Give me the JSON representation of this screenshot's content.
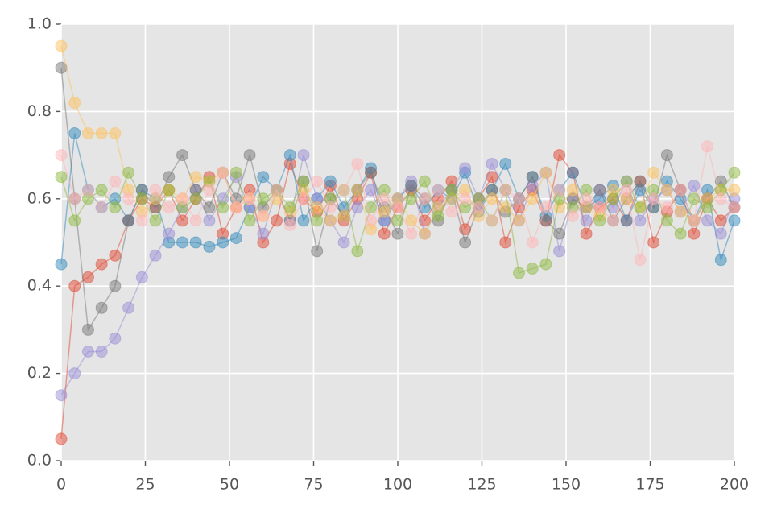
{
  "chart_data": {
    "type": "line",
    "x": [
      0,
      4,
      8,
      12,
      16,
      20,
      24,
      28,
      32,
      36,
      40,
      44,
      48,
      52,
      56,
      60,
      64,
      68,
      72,
      76,
      80,
      84,
      88,
      92,
      96,
      100,
      104,
      108,
      112,
      116,
      120,
      124,
      128,
      132,
      136,
      140,
      144,
      148,
      152,
      156,
      160,
      164,
      168,
      172,
      176,
      180,
      184,
      188,
      192,
      196,
      200
    ],
    "series": [
      {
        "color": "#E24A33",
        "values": [
          0.05,
          0.4,
          0.42,
          0.45,
          0.47,
          0.55,
          0.6,
          0.58,
          0.62,
          0.55,
          0.6,
          0.65,
          0.52,
          0.58,
          0.62,
          0.5,
          0.55,
          0.68,
          0.6,
          0.57,
          0.63,
          0.55,
          0.6,
          0.66,
          0.52,
          0.58,
          0.62,
          0.55,
          0.6,
          0.64,
          0.53,
          0.6,
          0.65,
          0.5,
          0.58,
          0.62,
          0.55,
          0.7,
          0.66,
          0.52,
          0.58,
          0.6,
          0.55,
          0.64,
          0.5,
          0.57,
          0.62,
          0.52,
          0.6,
          0.55,
          0.58
        ]
      },
      {
        "color": "#348ABD",
        "values": [
          0.45,
          0.75,
          0.62,
          0.58,
          0.6,
          0.55,
          0.62,
          0.6,
          0.5,
          0.5,
          0.5,
          0.49,
          0.5,
          0.51,
          0.58,
          0.65,
          0.62,
          0.7,
          0.55,
          0.6,
          0.64,
          0.58,
          0.62,
          0.67,
          0.55,
          0.6,
          0.63,
          0.58,
          0.62,
          0.6,
          0.66,
          0.57,
          0.62,
          0.68,
          0.6,
          0.65,
          0.56,
          0.62,
          0.66,
          0.58,
          0.6,
          0.63,
          0.55,
          0.62,
          0.58,
          0.64,
          0.6,
          0.55,
          0.62,
          0.46,
          0.55
        ]
      },
      {
        "color": "#988ED5",
        "values": [
          0.15,
          0.2,
          0.25,
          0.25,
          0.28,
          0.35,
          0.42,
          0.47,
          0.52,
          0.58,
          0.62,
          0.55,
          0.6,
          0.65,
          0.58,
          0.52,
          0.62,
          0.55,
          0.7,
          0.6,
          0.55,
          0.5,
          0.58,
          0.62,
          0.55,
          0.6,
          0.64,
          0.52,
          0.58,
          0.62,
          0.67,
          0.6,
          0.68,
          0.62,
          0.55,
          0.63,
          0.66,
          0.48,
          0.6,
          0.55,
          0.62,
          0.58,
          0.64,
          0.55,
          0.6,
          0.62,
          0.57,
          0.63,
          0.55,
          0.52,
          0.6
        ]
      },
      {
        "color": "#777777",
        "values": [
          0.9,
          0.6,
          0.3,
          0.35,
          0.4,
          0.55,
          0.62,
          0.58,
          0.65,
          0.7,
          0.62,
          0.58,
          0.66,
          0.6,
          0.7,
          0.58,
          0.62,
          0.55,
          0.64,
          0.48,
          0.6,
          0.56,
          0.62,
          0.66,
          0.58,
          0.52,
          0.63,
          0.6,
          0.55,
          0.62,
          0.5,
          0.58,
          0.62,
          0.57,
          0.6,
          0.65,
          0.55,
          0.52,
          0.6,
          0.58,
          0.62,
          0.55,
          0.6,
          0.64,
          0.58,
          0.7,
          0.62,
          0.55,
          0.6,
          0.64,
          0.58
        ]
      },
      {
        "color": "#FBC15E",
        "values": [
          0.95,
          0.82,
          0.75,
          0.75,
          0.75,
          0.62,
          0.57,
          0.6,
          0.62,
          0.6,
          0.65,
          0.64,
          0.66,
          0.58,
          0.6,
          0.56,
          0.6,
          0.57,
          0.62,
          0.58,
          0.55,
          0.56,
          0.62,
          0.53,
          0.57,
          0.6,
          0.55,
          0.52,
          0.58,
          0.6,
          0.62,
          0.56,
          0.6,
          0.58,
          0.55,
          0.6,
          0.66,
          0.58,
          0.62,
          0.58,
          0.56,
          0.62,
          0.6,
          0.58,
          0.66,
          0.62,
          0.57,
          0.55,
          0.6,
          0.62,
          0.62
        ]
      },
      {
        "color": "#8EBA42",
        "values": [
          0.65,
          0.55,
          0.6,
          0.62,
          0.58,
          0.66,
          0.6,
          0.55,
          0.62,
          0.58,
          0.6,
          0.64,
          0.58,
          0.66,
          0.55,
          0.6,
          0.62,
          0.58,
          0.64,
          0.55,
          0.6,
          0.62,
          0.48,
          0.58,
          0.62,
          0.55,
          0.6,
          0.64,
          0.56,
          0.62,
          0.58,
          0.6,
          0.55,
          0.62,
          0.43,
          0.44,
          0.45,
          0.6,
          0.58,
          0.62,
          0.55,
          0.6,
          0.64,
          0.58,
          0.62,
          0.55,
          0.52,
          0.6,
          0.58,
          0.62,
          0.66
        ]
      },
      {
        "color": "#FFB5B8",
        "values": [
          0.7,
          0.6,
          0.62,
          0.58,
          0.64,
          0.6,
          0.55,
          0.62,
          0.58,
          0.6,
          0.55,
          0.62,
          0.66,
          0.58,
          0.6,
          0.56,
          0.62,
          0.54,
          0.6,
          0.64,
          0.58,
          0.62,
          0.68,
          0.55,
          0.6,
          0.58,
          0.52,
          0.6,
          0.62,
          0.57,
          0.6,
          0.58,
          0.55,
          0.62,
          0.6,
          0.5,
          0.58,
          0.62,
          0.56,
          0.6,
          0.58,
          0.55,
          0.62,
          0.46,
          0.6,
          0.58,
          0.62,
          0.55,
          0.72,
          0.6,
          0.58
        ]
      }
    ],
    "xlim": [
      0,
      200
    ],
    "ylim": [
      0,
      1
    ],
    "xticks": [
      0,
      25,
      50,
      75,
      100,
      125,
      150,
      175,
      200
    ],
    "yticks": [
      {
        "value": 0,
        "label": "0.0"
      },
      0.2,
      0.4,
      0.6,
      0.8,
      {
        "value": 1,
        "label": "1.0"
      }
    ],
    "grid": true
  }
}
